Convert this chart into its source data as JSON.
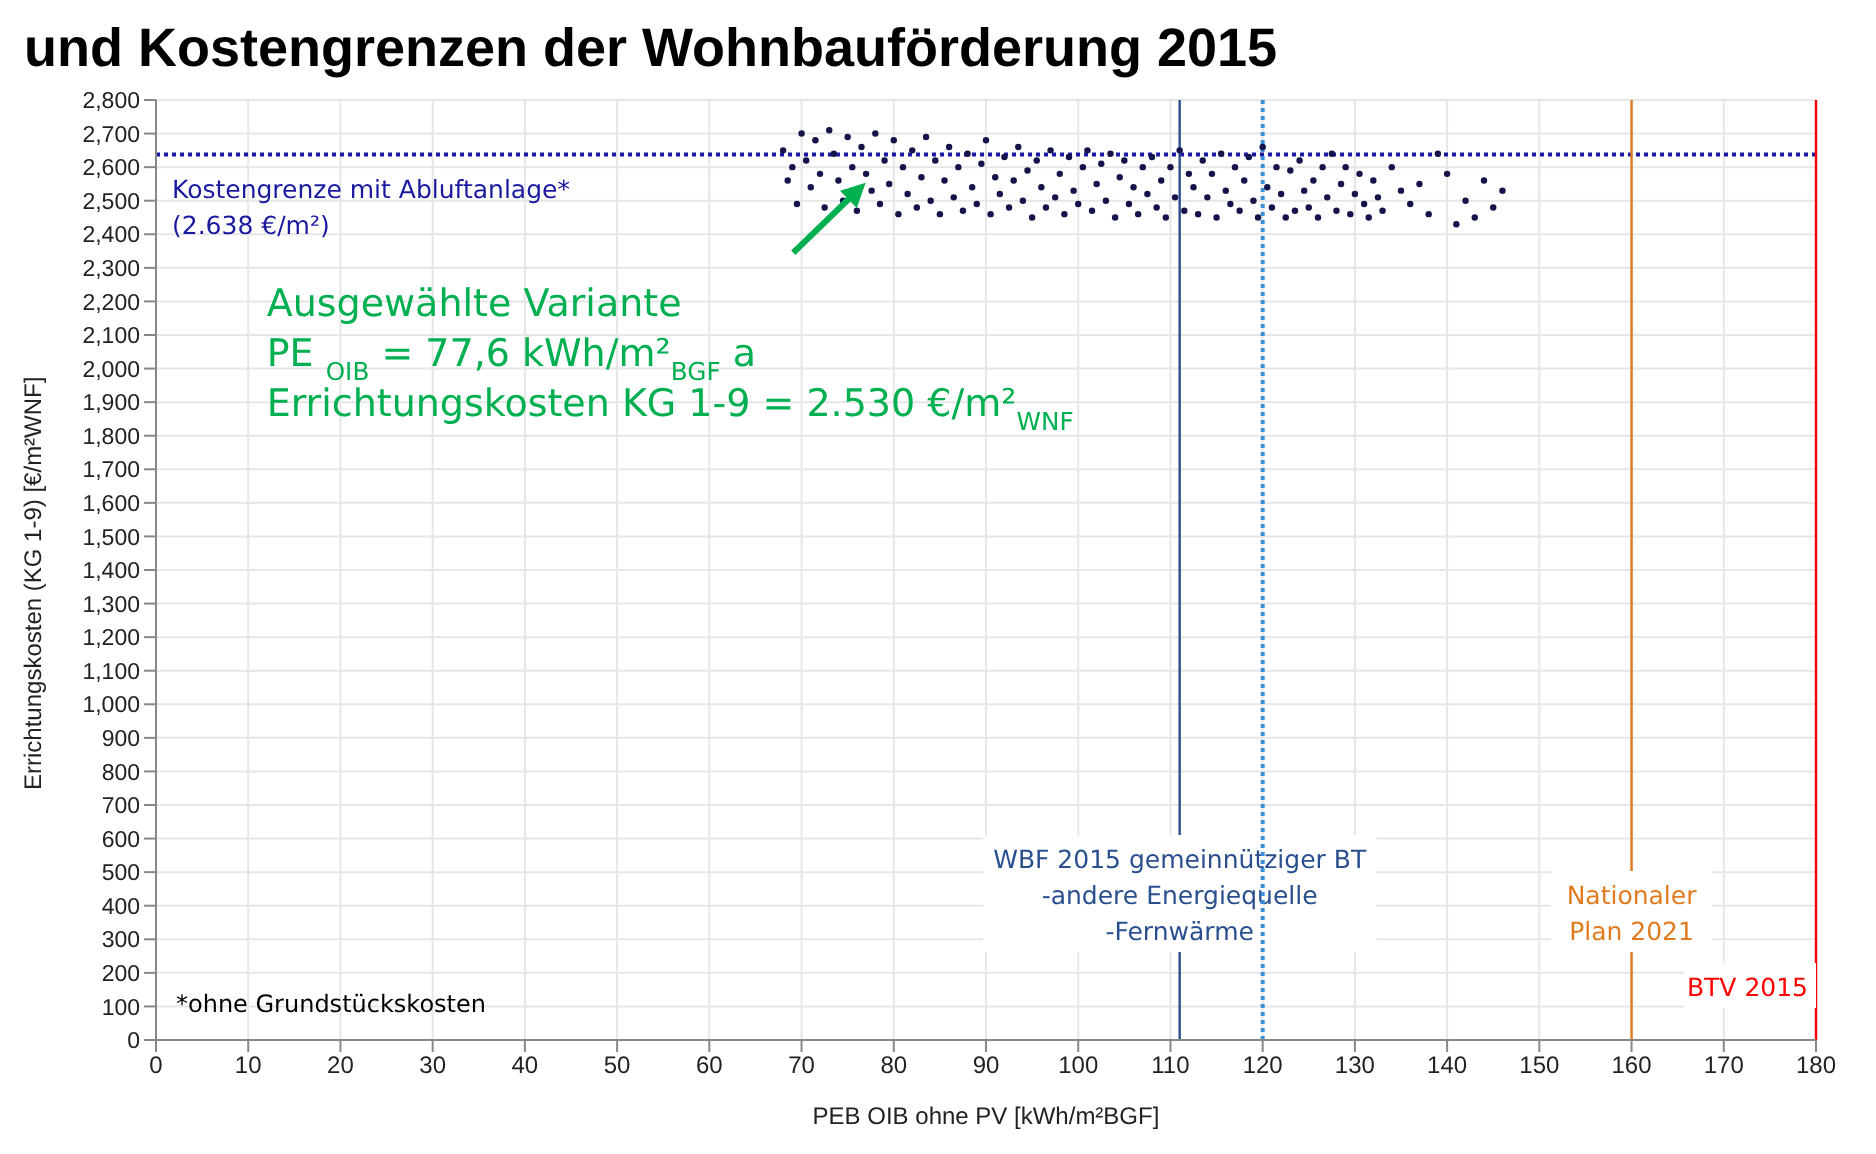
{
  "chart_data": {
    "type": "scatter",
    "title": "und Kostengrenzen der Wohnbauförderung 2015",
    "xlabel": "PEB OIB ohne PV [kWh/m²BGF]",
    "ylabel": "Errichtungskosten (KG 1-9) [€/m²WNF]",
    "xlim": [
      0,
      180
    ],
    "xticks": [
      0,
      10,
      20,
      30,
      40,
      50,
      60,
      70,
      80,
      90,
      100,
      110,
      120,
      130,
      140,
      150,
      160,
      170,
      180
    ],
    "ylim": [
      0,
      2800
    ],
    "yticks": [
      0,
      100,
      200,
      300,
      400,
      500,
      600,
      700,
      800,
      900,
      {
        "value": 1000,
        "label": "1,000"
      },
      {
        "value": 1100,
        "label": "1,100"
      },
      {
        "value": 1200,
        "label": "1,200"
      },
      {
        "value": 1300,
        "label": "1,300"
      },
      {
        "value": 1400,
        "label": "1,400"
      },
      {
        "value": 1500,
        "label": "1,500"
      },
      {
        "value": 1600,
        "label": "1,600"
      },
      {
        "value": 1700,
        "label": "1,700"
      },
      {
        "value": 1800,
        "label": "1,800"
      },
      {
        "value": 1900,
        "label": "1,900"
      },
      {
        "value": 2000,
        "label": "2,000"
      },
      {
        "value": 2100,
        "label": "2,100"
      },
      {
        "value": 2200,
        "label": "2,200"
      },
      {
        "value": 2300,
        "label": "2,300"
      },
      {
        "value": 2400,
        "label": "2,400"
      },
      {
        "value": 2500,
        "label": "2,500"
      },
      {
        "value": 2600,
        "label": "2,600"
      },
      {
        "value": 2700,
        "label": "2,700"
      },
      {
        "value": 2800,
        "label": "2,800"
      }
    ],
    "grid": true,
    "marker": "circle",
    "series": [
      {
        "color": "#14144a",
        "x": [
          68,
          68.5,
          69,
          69.5,
          70,
          70.5,
          71,
          71.5,
          72,
          72.5,
          73,
          73.5,
          74,
          74.5,
          75,
          75.5,
          76,
          76.5,
          77,
          77.6,
          78,
          78.5,
          79,
          79.5,
          80,
          80.5,
          81,
          81.5,
          82,
          82.5,
          83,
          83.5,
          84,
          84.5,
          85,
          85.5,
          86,
          86.5,
          87,
          87.5,
          88,
          88.5,
          89,
          89.5,
          90,
          90.5,
          91,
          91.5,
          92,
          92.5,
          93,
          93.5,
          94,
          94.5,
          95,
          95.5,
          96,
          96.5,
          97,
          97.5,
          98,
          98.5,
          99,
          99.5,
          100,
          100.5,
          101,
          101.5,
          102,
          102.5,
          103,
          103.5,
          104,
          104.5,
          105,
          105.5,
          106,
          106.5,
          107,
          107.5,
          108,
          108.5,
          109,
          109.5,
          110,
          110.5,
          111,
          111.5,
          112,
          112.5,
          113,
          113.5,
          114,
          114.5,
          115,
          115.5,
          116,
          116.5,
          117,
          117.5,
          118,
          118.5,
          119,
          119.5,
          120,
          120.5,
          121,
          121.5,
          122,
          122.5,
          123,
          123.5,
          124,
          124.5,
          125,
          125.5,
          126,
          126.5,
          127,
          127.5,
          128,
          128.5,
          129,
          129.5,
          130,
          130.5,
          131,
          131.5,
          132,
          132.5,
          133,
          134,
          135,
          136,
          137,
          138,
          139,
          140,
          141,
          142,
          143,
          144,
          145,
          146
        ],
        "values": [
          2650,
          2560,
          2600,
          2490,
          2700,
          2620,
          2540,
          2680,
          2580,
          2480,
          2710,
          2640,
          2560,
          2500,
          2690,
          2600,
          2470,
          2660,
          2580,
          2530,
          2700,
          2490,
          2620,
          2550,
          2680,
          2460,
          2600,
          2520,
          2650,
          2480,
          2570,
          2690,
          2500,
          2620,
          2460,
          2560,
          2660,
          2510,
          2600,
          2470,
          2640,
          2540,
          2490,
          2610,
          2680,
          2460,
          2570,
          2520,
          2630,
          2480,
          2560,
          2660,
          2500,
          2590,
          2450,
          2620,
          2540,
          2480,
          2650,
          2510,
          2580,
          2460,
          2630,
          2530,
          2490,
          2600,
          2650,
          2470,
          2550,
          2610,
          2500,
          2640,
          2450,
          2570,
          2620,
          2490,
          2540,
          2460,
          2600,
          2520,
          2630,
          2480,
          2560,
          2450,
          2600,
          2510,
          2650,
          2470,
          2580,
          2540,
          2460,
          2620,
          2510,
          2580,
          2450,
          2640,
          2530,
          2490,
          2600,
          2470,
          2560,
          2630,
          2500,
          2450,
          2660,
          2540,
          2480,
          2600,
          2520,
          2450,
          2590,
          2470,
          2620,
          2530,
          2480,
          2560,
          2450,
          2600,
          2510,
          2640,
          2470,
          2550,
          2600,
          2460,
          2520,
          2580,
          2490,
          2450,
          2560,
          2510,
          2470,
          2600,
          2530,
          2490,
          2550,
          2460,
          2640,
          2580,
          2430,
          2500,
          2450,
          2560,
          2480,
          2530
        ]
      }
    ],
    "ref_lines": [
      {
        "axis": "y",
        "value": 2638,
        "label": "Kostengrenze mit Abluftanlage*\n(2.638 €/m²)",
        "color": "#1a1aa0",
        "line_style": "dotted"
      },
      {
        "axis": "x",
        "value": 111,
        "label": "WBF 2015 gemeinnütziger BT\n-andere Energiequelle\n-Fernwärme",
        "color": "#2a4f8f",
        "line_style": "solid"
      },
      {
        "axis": "x",
        "value": 120,
        "color": "#3a8fd8",
        "line_style": "dotted"
      },
      {
        "axis": "x",
        "value": 160,
        "label": "Nationaler\nPlan 2021",
        "color": "#e07b20",
        "line_style": "solid"
      },
      {
        "axis": "x",
        "value": 180,
        "label": "BTV 2015",
        "color": "#ff0000",
        "line_style": "solid"
      }
    ],
    "annotations": [
      {
        "text": "Ausgewählte Variante\nPE $_{OIB}$ = 77,6 kWh/m²$_{BGF}$a\nErrichtungskosten KG 1-9 = 2.530 €/m²$_{WNF}$",
        "x": 77.6,
        "y": 2530
      },
      "*ohne Grundstückskosten"
    ]
  }
}
